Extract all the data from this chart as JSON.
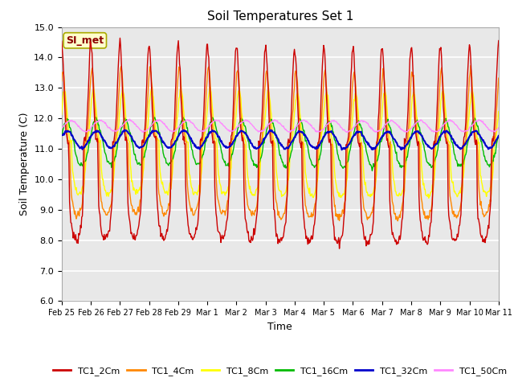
{
  "title": "Soil Temperatures Set 1",
  "xlabel": "Time",
  "ylabel": "Soil Temperature (C)",
  "ylim": [
    6.0,
    15.0
  ],
  "yticks": [
    6.0,
    7.0,
    8.0,
    9.0,
    10.0,
    11.0,
    12.0,
    13.0,
    14.0,
    15.0
  ],
  "fig_bg": "#ffffff",
  "plot_bg": "#e8e8e8",
  "grid_color": "#ffffff",
  "annotation_text": "SI_met",
  "annotation_color": "#8b0000",
  "annotation_bg": "#ffffcc",
  "annotation_edge": "#aaaa00",
  "series_colors": {
    "TC1_2Cm": "#cc0000",
    "TC1_4Cm": "#ff8800",
    "TC1_8Cm": "#ffff00",
    "TC1_16Cm": "#00bb00",
    "TC1_32Cm": "#0000cc",
    "TC1_50Cm": "#ff88ff"
  },
  "xtick_labels": [
    "Feb 25",
    "Feb 26",
    "Feb 27",
    "Feb 28",
    "Feb 29",
    "Mar 1",
    "Mar 2",
    "Mar 3",
    "Mar 4",
    "Mar 5",
    "Mar 6",
    "Mar 7",
    "Mar 8",
    "Mar 9",
    "Mar 10",
    "Mar 11"
  ],
  "num_days": 15,
  "pts_per_day": 48,
  "base_temp": 11.2,
  "amp_2cm": 3.2,
  "amp_4cm": 2.4,
  "amp_8cm": 1.7,
  "amp_16cm": 0.75,
  "amp_32cm": 0.28,
  "amp_50cm": 0.18,
  "mean_32cm": 11.3,
  "mean_50cm": 11.75,
  "sharpness": 4.0
}
